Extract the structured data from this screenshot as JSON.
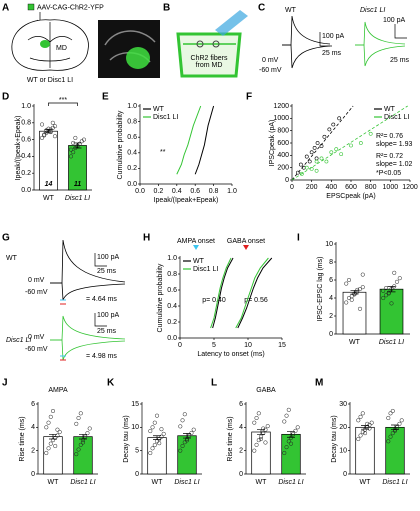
{
  "panel_a": {
    "letter": "A",
    "injection": "AAV-CAG-ChR2-YFP",
    "region": "MD",
    "genotypes": "WT or Disc1 LI"
  },
  "panel_b": {
    "letter": "B",
    "label": [
      "ChR2 fibers",
      "from MD"
    ]
  },
  "panel_c": {
    "letter": "C",
    "wt": "WT",
    "mutant": "Disc1 LI",
    "holds": [
      "0 mV",
      "-60 mV"
    ],
    "wt_scale": [
      "100 pA",
      "25 ms"
    ],
    "mutant_scale": [
      "100 pA",
      "25 ms"
    ]
  },
  "panel_g": {
    "letter": "G",
    "wt": "WT",
    "mutant": "Disc1 LI",
    "wt_holds": [
      "0 mV",
      "-60 mV"
    ],
    "mutant_holds": [
      "0 mV",
      "-60 mV"
    ],
    "wt_scale": [
      "100 pA",
      "25 ms"
    ],
    "mutant_scale": [
      "100 pA",
      "25 ms"
    ],
    "wt_lag": "= 4.64 ms",
    "mutant_lag": "= 4.98 ms"
  },
  "chart_data": [
    {
      "type": "bar",
      "panel": "D",
      "ylabel": "Ipeak/(Ipeak+Epeak)",
      "categories": [
        "WT",
        "Disc1 LI"
      ],
      "values": [
        0.7,
        0.53
      ],
      "errors": [
        0.02,
        0.03
      ],
      "colors": [
        "#ffffff",
        "#33c433"
      ],
      "n": [
        14,
        11
      ],
      "significance": "***",
      "points": [
        [
          0.62,
          0.65,
          0.68,
          0.7,
          0.72,
          0.74,
          0.76,
          0.78,
          0.66,
          0.71,
          0.73,
          0.69,
          0.8,
          0.64
        ],
        [
          0.4,
          0.45,
          0.5,
          0.52,
          0.55,
          0.58,
          0.6,
          0.48,
          0.56,
          0.62,
          0.53
        ]
      ],
      "ylim": [
        0,
        1
      ],
      "yticks": [
        {
          "value": 0,
          "label": "0.0"
        },
        0.2,
        0.4,
        0.6,
        0.8,
        {
          "value": 1,
          "label": "1.0"
        }
      ]
    },
    {
      "type": "line",
      "panel": "E",
      "xlabel": "Ipeak/(Ipeak+Epeak)",
      "ylabel": "Cumulative probability",
      "legend": "top-left",
      "annotations": [
        {
          "text": "**",
          "color": "#000000"
        }
      ],
      "series": [
        {
          "name": "WT",
          "color": "#000000",
          "x": [
            0.6,
            0.64,
            0.67,
            0.7,
            0.72,
            0.74,
            0.77,
            0.8
          ],
          "values": [
            0.125,
            0.25,
            0.375,
            0.5,
            0.625,
            0.75,
            0.875,
            1
          ]
        },
        {
          "name": "Disc1 LI",
          "color": "#33c433",
          "x": [
            0.4,
            0.45,
            0.48,
            0.52,
            0.55,
            0.58,
            0.62,
            0.66
          ],
          "values": [
            0.125,
            0.25,
            0.375,
            0.5,
            0.625,
            0.75,
            0.875,
            1
          ]
        }
      ],
      "xlim": [
        0,
        1
      ],
      "xticks": [
        {
          "value": 0,
          "label": "0.0"
        },
        0.2,
        0.4,
        0.6,
        0.8,
        {
          "value": 1,
          "label": "1.0"
        }
      ],
      "ylim": [
        0,
        1
      ],
      "yticks": [
        {
          "value": 0,
          "label": "0.0"
        },
        0.2,
        0.4,
        0.6,
        0.8,
        {
          "value": 1,
          "label": "1.0"
        }
      ]
    },
    {
      "type": "scatter",
      "panel": "F",
      "xlabel": "EPSCpeak (pA)",
      "ylabel": "IPSCpeak (pA)",
      "legend": "top-right",
      "annotations": [
        {
          "text": "R²= 0.76",
          "color": "#000000"
        },
        {
          "text": "slope= 1.93",
          "color": "#000000"
        },
        {
          "text": "R²= 0.72",
          "color": "#33c433"
        },
        {
          "text": "slope= 1.02",
          "color": "#33c433"
        },
        {
          "text": "*P<0.05",
          "color": "#000000"
        }
      ],
      "series": [
        {
          "name": "WT",
          "color": "#000000",
          "slope": 1.93,
          "x": [
            60,
            90,
            120,
            150,
            180,
            200,
            230,
            260,
            300,
            330,
            380,
            420,
            480,
            250
          ],
          "values": [
            120,
            250,
            200,
            380,
            300,
            450,
            520,
            600,
            550,
            700,
            820,
            900,
            1000,
            350
          ]
        },
        {
          "name": "Disc1 LI",
          "color": "#33c433",
          "slope": 1.02,
          "x": [
            100,
            150,
            200,
            250,
            300,
            350,
            400,
            450,
            500,
            600,
            700,
            800,
            250
          ],
          "values": [
            100,
            200,
            180,
            300,
            350,
            300,
            450,
            500,
            420,
            560,
            600,
            750,
            150
          ]
        }
      ],
      "xlim": [
        0,
        1200
      ],
      "xticks": [
        0,
        200,
        400,
        600,
        800,
        1000,
        1200
      ],
      "ylim": [
        0,
        1200
      ],
      "yticks": [
        0,
        200,
        400,
        600,
        800,
        1000,
        1200
      ]
    },
    {
      "type": "line",
      "panel": "H",
      "xlabel": "Latency to onset (ms)",
      "ylabel": "Cumulative probability",
      "legend": "top-left",
      "annotations": [
        {
          "text": "AMPA onset",
          "color": "#000000"
        },
        {
          "text": "GABA onset",
          "color": "#000000"
        },
        {
          "text": "p= 0.40",
          "color": "#000000"
        },
        {
          "text": "p= 0.56",
          "color": "#000000"
        }
      ],
      "series": [
        {
          "name": "WT",
          "color": "#000000",
          "curves": [
            {
              "x": [
                4.8,
                5.2,
                5.5,
                5.8,
                6.1,
                6.5,
                7,
                7.8
              ],
              "values": [
                0.125,
                0.25,
                0.375,
                0.5,
                0.625,
                0.75,
                0.875,
                1
              ]
            },
            {
              "x": [
                8.5,
                9.2,
                9.8,
                10.3,
                10.8,
                11.4,
                12.2,
                13.5
              ],
              "values": [
                0.125,
                0.25,
                0.375,
                0.5,
                0.625,
                0.75,
                0.875,
                1
              ]
            }
          ]
        },
        {
          "name": "Disc1 LI",
          "color": "#33c433",
          "curves": [
            {
              "x": [
                4.5,
                5,
                5.3,
                5.6,
                5.9,
                6.3,
                6.8,
                7.5
              ],
              "values": [
                0.125,
                0.25,
                0.375,
                0.5,
                0.625,
                0.75,
                0.875,
                1
              ]
            },
            {
              "x": [
                8.2,
                9,
                9.5,
                10,
                10.5,
                11,
                11.8,
                13
              ],
              "values": [
                0.125,
                0.25,
                0.375,
                0.5,
                0.625,
                0.75,
                0.875,
                1
              ]
            }
          ]
        }
      ],
      "xlim": [
        0,
        15
      ],
      "xticks": [
        0,
        5,
        10,
        15
      ],
      "ylim": [
        0,
        1
      ],
      "yticks": [
        {
          "value": 0,
          "label": "0.0"
        },
        0.2,
        0.4,
        0.6,
        0.8,
        {
          "value": 1,
          "label": "1.0"
        }
      ]
    },
    {
      "type": "bar",
      "panel": "I",
      "ylabel": "IPSC-EPSC lag (ms)",
      "categories": [
        "WT",
        "Disc1 LI"
      ],
      "values": [
        4.64,
        4.98
      ],
      "errors": [
        0.2,
        0.3
      ],
      "colors": [
        "#ffffff",
        "#33c433"
      ],
      "points": [
        [
          3.5,
          4,
          4.2,
          4.5,
          4.7,
          5,
          5.2,
          5.6,
          6,
          3.8,
          4.4,
          4.9,
          2.8,
          6.6
        ],
        [
          4,
          4.3,
          4.6,
          5,
          5.3,
          5.8,
          6.2,
          4.8,
          5.1,
          4.5,
          3.4,
          6.8
        ]
      ],
      "ylim": [
        0,
        10
      ],
      "yticks": [
        0,
        2,
        4,
        6,
        8,
        10
      ]
    },
    {
      "type": "bar",
      "panel": "J",
      "title": "AMPA",
      "title_color": "#3cc6f0",
      "ylabel": "Rise time (ms)",
      "categories": [
        "WT",
        "Disc1 LI"
      ],
      "values": [
        3.2,
        3.2
      ],
      "errors": [
        0.2,
        0.2
      ],
      "colors": [
        "#ffffff",
        "#33c433"
      ],
      "points": [
        [
          1.8,
          2.2,
          2.6,
          2.9,
          3.1,
          3.3,
          3.6,
          4,
          4.4,
          4.9,
          5.4,
          2.4,
          3.8
        ],
        [
          1.7,
          2.1,
          2.5,
          2.9,
          3.2,
          3.5,
          3.9,
          4.3,
          4.8,
          5.2,
          2.7
        ]
      ],
      "ylim": [
        0,
        6
      ],
      "yticks": [
        0,
        2,
        4,
        6
      ]
    },
    {
      "type": "bar",
      "panel": "K",
      "ylabel": "Decay tau (ms)",
      "categories": [
        "WT",
        "Disc1 LI"
      ],
      "values": [
        7.8,
        8.2
      ],
      "errors": [
        0.4,
        0.5
      ],
      "colors": [
        "#ffffff",
        "#33c433"
      ],
      "points": [
        [
          4.5,
          5.5,
          6.2,
          7,
          7.5,
          8,
          8.6,
          9.2,
          10,
          11,
          12.5,
          6.6,
          9.6
        ],
        [
          5,
          6,
          6.8,
          7.5,
          8.2,
          8.8,
          9.5,
          10.2,
          11.5,
          12.8,
          7.2
        ]
      ],
      "ylim": [
        0,
        15
      ],
      "yticks": [
        0,
        5,
        10,
        15
      ]
    },
    {
      "type": "bar",
      "panel": "L",
      "title": "GABA",
      "title_color": "#e02020",
      "ylabel": "Rise time (ms)",
      "categories": [
        "WT",
        "Disc1 LI"
      ],
      "values": [
        3.6,
        3.4
      ],
      "errors": [
        0.2,
        0.25
      ],
      "colors": [
        "#ffffff",
        "#33c433"
      ],
      "points": [
        [
          2,
          2.5,
          2.9,
          3.2,
          3.5,
          3.8,
          4.1,
          4.4,
          4.8,
          5.2,
          3,
          3.9,
          2.7
        ],
        [
          1.8,
          2.3,
          2.8,
          3.1,
          3.4,
          3.7,
          4,
          4.5,
          5,
          5.5,
          2.6
        ]
      ],
      "ylim": [
        0,
        6
      ],
      "yticks": [
        0,
        2,
        4,
        6
      ]
    },
    {
      "type": "bar",
      "panel": "M",
      "ylabel": "Decay tau (ms)",
      "categories": [
        "WT",
        "Disc1 LI"
      ],
      "values": [
        20,
        20
      ],
      "errors": [
        0.8,
        1
      ],
      "colors": [
        "#ffffff",
        "#33c433"
      ],
      "points": [
        [
          15,
          16.5,
          18,
          19,
          20,
          21,
          22,
          23,
          24.5,
          26,
          17.5,
          21.5,
          19.5
        ],
        [
          14,
          16,
          17.5,
          19,
          20,
          21.5,
          23,
          24,
          26,
          27,
          18.5
        ]
      ],
      "ylim": [
        0,
        30
      ],
      "yticks": [
        0,
        10,
        20,
        30
      ]
    }
  ]
}
